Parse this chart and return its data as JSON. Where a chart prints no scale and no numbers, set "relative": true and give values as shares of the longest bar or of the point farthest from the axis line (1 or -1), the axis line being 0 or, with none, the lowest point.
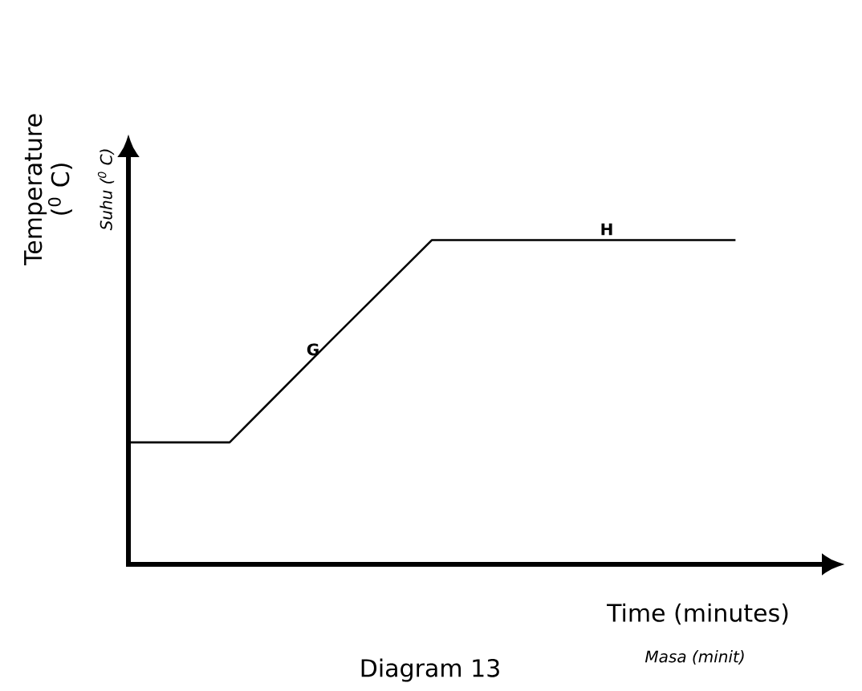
{
  "chart_data": {
    "type": "line",
    "relative": true,
    "categories": [
      null,
      null,
      null,
      null,
      null,
      null,
      null
    ],
    "values": [
      0.376,
      0.376,
      0.69,
      1,
      1,
      1,
      1
    ],
    "color": "#000000",
    "xlabel": "Time (minutes)",
    "ylabel": "Temperature ($^{0}$ C)",
    "annotations": [
      "G",
      "H",
      "Suhu ($^{0}$ C)",
      "Masa (minit)",
      "Diagram 13"
    ]
  }
}
